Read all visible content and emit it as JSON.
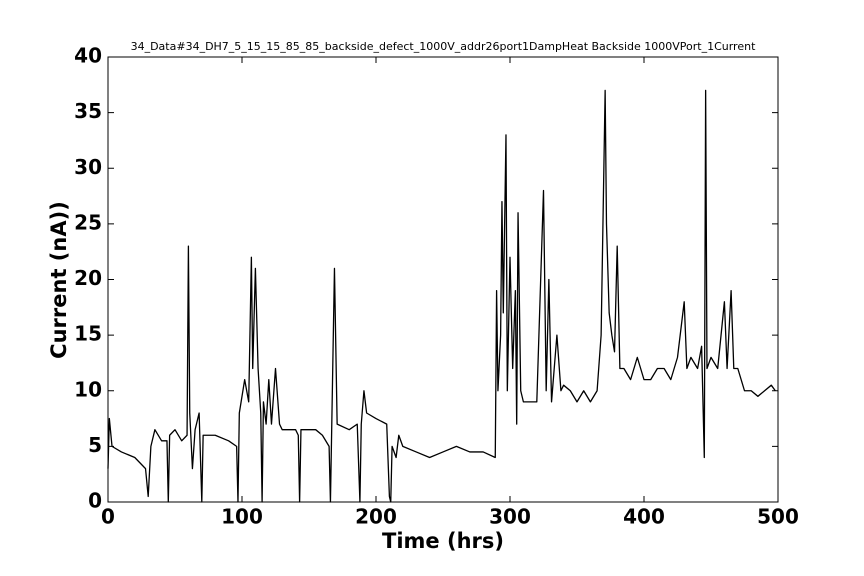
{
  "chart_data": {
    "type": "line",
    "title": "34_Data#34_DH7_5_15_15_85_85_backside_defect_1000V_addr26port1DampHeat Backside 1000VPort_1Current",
    "x_label": "Time (hrs)",
    "y_label": "Current (nA))",
    "xlim": [
      0,
      500
    ],
    "xticks": [
      0,
      100,
      200,
      300,
      400,
      500
    ],
    "ylim": [
      0,
      40
    ],
    "yticks": [
      0,
      5,
      10,
      15,
      20,
      25,
      30,
      35,
      40
    ],
    "grid": false,
    "series": [
      {
        "name": "Current",
        "color": "#000000",
        "x": [
          0,
          1,
          3,
          10,
          20,
          28,
          30,
          32,
          35,
          40,
          44,
          45,
          46,
          50,
          55,
          59,
          60,
          61,
          63,
          65,
          68,
          70,
          71,
          80,
          90,
          96,
          97,
          98,
          102,
          105,
          107,
          108,
          110,
          112,
          114,
          115,
          116,
          118,
          120,
          122,
          125,
          128,
          130,
          140,
          142,
          143,
          144,
          155,
          160,
          165,
          166,
          167,
          169,
          171,
          180,
          186,
          188,
          189,
          191,
          193,
          200,
          208,
          210,
          211,
          212,
          215,
          217,
          220,
          230,
          240,
          250,
          260,
          270,
          280,
          289,
          290,
          291,
          293,
          294,
          295,
          297,
          298,
          300,
          302,
          304,
          305,
          306,
          308,
          310,
          315,
          320,
          325,
          327,
          329,
          331,
          335,
          338,
          340,
          345,
          350,
          355,
          360,
          365,
          368,
          371,
          372,
          374,
          376,
          378,
          380,
          382,
          385,
          390,
          395,
          400,
          405,
          410,
          415,
          420,
          425,
          430,
          432,
          435,
          440,
          443,
          445,
          446,
          447,
          450,
          455,
          460,
          462,
          465,
          467,
          470,
          475,
          480,
          485,
          490,
          495,
          498
        ],
        "values": [
          3,
          7.5,
          5,
          4.5,
          4,
          3,
          0.5,
          5,
          6.5,
          5.5,
          5.5,
          0,
          6,
          6.5,
          5.5,
          6,
          23,
          8,
          3,
          6.5,
          8,
          0,
          6,
          6,
          5.5,
          5,
          0,
          8,
          11,
          9,
          22,
          12,
          21,
          12,
          8,
          0,
          9,
          7,
          11,
          7,
          12,
          7,
          6.5,
          6.5,
          6,
          0,
          6.5,
          6.5,
          6,
          5,
          0,
          7,
          21,
          7,
          6.5,
          7,
          0,
          7,
          10,
          8,
          7.5,
          7,
          0.5,
          0,
          5,
          4,
          6,
          5,
          4.5,
          4,
          4.5,
          5,
          4.5,
          4.5,
          4,
          19,
          10,
          15,
          27,
          17,
          33,
          10,
          22,
          12,
          19,
          7,
          26,
          10,
          9,
          9,
          9,
          28,
          10,
          20,
          9,
          15,
          10,
          10.5,
          10,
          9,
          10,
          9,
          10,
          15,
          37,
          25,
          17,
          15,
          13.5,
          23,
          12,
          12,
          11,
          13,
          11,
          11,
          12,
          12,
          11,
          13,
          18,
          12,
          13,
          12,
          14,
          4,
          37,
          12,
          13,
          12,
          18,
          12,
          19,
          12,
          12,
          10,
          10,
          9.5,
          10,
          10.5,
          10
        ]
      }
    ]
  }
}
